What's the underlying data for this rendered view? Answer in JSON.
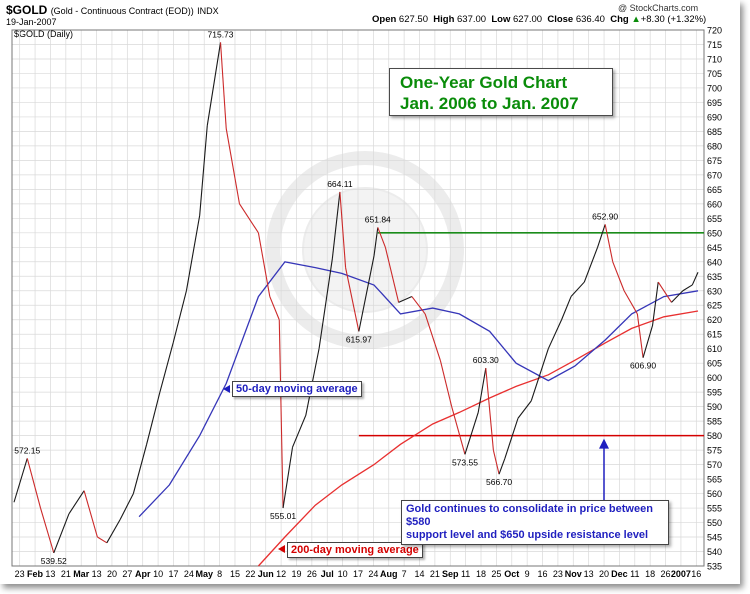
{
  "header": {
    "symbol": "$GOLD",
    "description": "(Gold - Continuous Contract (EOD))",
    "exchange": "INDX",
    "date": "19-Jan-2007",
    "credit": "@ StockCharts.com",
    "series_label": "$GOLD (Daily)",
    "quote": {
      "open_label": "Open",
      "open": "627.50",
      "high_label": "High",
      "high": "637.00",
      "low_label": "Low",
      "low": "627.00",
      "close_label": "Close",
      "close": "636.40",
      "chg_label": "Chg",
      "chg": "+8.30 (+1.32%)",
      "direction_glyph": "▲"
    }
  },
  "annotations": {
    "title_line1": "One-Year Gold Chart",
    "title_line2": "Jan. 2006 to Jan. 2007",
    "ma50_label": "50-day moving average",
    "ma200_label": "200-day moving average",
    "note_line1": "Gold continues to consolidate in price between $580",
    "note_line2": "support level and $650 upside resistance level"
  },
  "chart_data": {
    "type": "line",
    "ylim": [
      535,
      720
    ],
    "y_ticks": [
      535,
      540,
      545,
      550,
      555,
      560,
      565,
      570,
      575,
      580,
      585,
      590,
      595,
      600,
      605,
      610,
      615,
      620,
      625,
      630,
      635,
      640,
      645,
      650,
      655,
      660,
      665,
      670,
      675,
      680,
      685,
      690,
      695,
      700,
      705,
      710,
      715,
      720
    ],
    "x_tick_labels": [
      "23",
      "Feb",
      "13",
      "21",
      "Mar",
      "13",
      "20",
      "27",
      "Apr",
      "10",
      "17",
      "24",
      "May",
      "8",
      "15",
      "22",
      "Jun",
      "12",
      "19",
      "26",
      "Jul",
      "10",
      "17",
      "24",
      "Aug",
      "7",
      "14",
      "21",
      "Sep",
      "11",
      "18",
      "25",
      "Oct",
      "9",
      "16",
      "23",
      "Nov",
      "13",
      "20",
      "Dec",
      "11",
      "18",
      "26",
      "2007",
      "16"
    ],
    "bold_x_labels": [
      "Feb",
      "Mar",
      "Apr",
      "May",
      "Jun",
      "Jul",
      "Aug",
      "Sep",
      "Oct",
      "Nov",
      "Dec",
      "2007"
    ],
    "price_points": [
      [
        "23 Jan",
        557
      ],
      [
        "30 Jan",
        572.15
      ],
      [
        "6 Feb",
        555
      ],
      [
        "13 Feb",
        539.52
      ],
      [
        "21 Feb",
        553
      ],
      [
        "1 Mar",
        561
      ],
      [
        "8 Mar",
        545
      ],
      [
        "13 Mar",
        543
      ],
      [
        "20 Mar",
        551
      ],
      [
        "27 Mar",
        560
      ],
      [
        "3 Apr",
        577
      ],
      [
        "10 Apr",
        595
      ],
      [
        "17 Apr",
        612
      ],
      [
        "24 Apr",
        630
      ],
      [
        "1 May",
        656
      ],
      [
        "5 May",
        687
      ],
      [
        "12 May",
        715.73
      ],
      [
        "15 May",
        686
      ],
      [
        "22 May",
        660
      ],
      [
        "1 Jun",
        650
      ],
      [
        "7 Jun",
        628
      ],
      [
        "12 Jun",
        620
      ],
      [
        "14 Jun",
        555.01
      ],
      [
        "19 Jun",
        576
      ],
      [
        "26 Jun",
        587
      ],
      [
        "3 Jul",
        610
      ],
      [
        "10 Jul",
        641
      ],
      [
        "14 Jul",
        664.11
      ],
      [
        "17 Jul",
        638
      ],
      [
        "24 Jul",
        615.97
      ],
      [
        "1 Aug",
        642
      ],
      [
        "3 Aug",
        651.84
      ],
      [
        "7 Aug",
        645
      ],
      [
        "14 Aug",
        626
      ],
      [
        "21 Aug",
        628
      ],
      [
        "28 Aug",
        622
      ],
      [
        "5 Sep",
        606
      ],
      [
        "11 Sep",
        590
      ],
      [
        "18 Sep",
        573.55
      ],
      [
        "25 Sep",
        588
      ],
      [
        "29 Sep",
        603.3
      ],
      [
        "3 Oct",
        575
      ],
      [
        "6 Oct",
        566.7
      ],
      [
        "9 Oct",
        572
      ],
      [
        "16 Oct",
        586
      ],
      [
        "23 Oct",
        592
      ],
      [
        "1 Nov",
        610
      ],
      [
        "8 Nov",
        620
      ],
      [
        "13 Nov",
        628
      ],
      [
        "20 Nov",
        633
      ],
      [
        "27 Nov",
        645
      ],
      [
        "1 Dec",
        652.9
      ],
      [
        "5 Dec",
        640
      ],
      [
        "11 Dec",
        630
      ],
      [
        "18 Dec",
        622
      ],
      [
        "21 Dec",
        606.9
      ],
      [
        "26 Dec",
        618
      ],
      [
        "29 Dec",
        633
      ],
      [
        "5 Jan",
        626
      ],
      [
        "11 Jan",
        630
      ],
      [
        "16 Jan",
        632
      ],
      [
        "19 Jan",
        636.4
      ]
    ],
    "data_labels": [
      {
        "text": "572.15",
        "value": 572.15,
        "date": "30 Jan"
      },
      {
        "text": "539.52",
        "value": 539.52,
        "date": "13 Feb"
      },
      {
        "text": "715.73",
        "value": 715.73,
        "date": "12 May"
      },
      {
        "text": "555.01",
        "value": 555.01,
        "date": "14 Jun"
      },
      {
        "text": "664.11",
        "value": 664.11,
        "date": "14 Jul"
      },
      {
        "text": "615.97",
        "value": 615.97,
        "date": "24 Jul"
      },
      {
        "text": "651.84",
        "value": 651.84,
        "date": "3 Aug"
      },
      {
        "text": "603.30",
        "value": 603.3,
        "date": "29 Sep"
      },
      {
        "text": "573.55",
        "value": 573.55,
        "date": "18 Sep"
      },
      {
        "text": "566.70",
        "value": 566.7,
        "date": "6 Oct"
      },
      {
        "text": "652.90",
        "value": 652.9,
        "date": "1 Dec"
      },
      {
        "text": "606.90",
        "value": 606.9,
        "date": "21 Dec"
      }
    ],
    "ma50": [
      [
        "30 Mar",
        552
      ],
      [
        "15 Apr",
        563
      ],
      [
        "1 May",
        580
      ],
      [
        "15 May",
        598
      ],
      [
        "1 Jun",
        628
      ],
      [
        "15 Jun",
        640
      ],
      [
        "1 Jul",
        638
      ],
      [
        "15 Jul",
        636
      ],
      [
        "1 Aug",
        632
      ],
      [
        "15 Aug",
        622
      ],
      [
        "1 Sep",
        624
      ],
      [
        "15 Sep",
        622
      ],
      [
        "1 Oct",
        616
      ],
      [
        "15 Oct",
        605
      ],
      [
        "1 Nov",
        599
      ],
      [
        "15 Nov",
        604
      ],
      [
        "1 Dec",
        613
      ],
      [
        "15 Dec",
        622
      ],
      [
        "1 Jan",
        628
      ],
      [
        "19 Jan",
        630
      ]
    ],
    "ma200": [
      [
        "1 Jun",
        535
      ],
      [
        "15 Jun",
        545
      ],
      [
        "1 Jul",
        556
      ],
      [
        "15 Jul",
        563
      ],
      [
        "1 Aug",
        570
      ],
      [
        "15 Aug",
        577
      ],
      [
        "1 Sep",
        584
      ],
      [
        "15 Sep",
        588
      ],
      [
        "1 Oct",
        593
      ],
      [
        "15 Oct",
        597
      ],
      [
        "1 Nov",
        601
      ],
      [
        "15 Nov",
        606
      ],
      [
        "1 Dec",
        612
      ],
      [
        "15 Dec",
        617
      ],
      [
        "1 Jan",
        621
      ],
      [
        "19 Jan",
        623
      ]
    ],
    "reference_lines": [
      {
        "name": "resistance",
        "value": 650,
        "color": "#1a8c1a"
      },
      {
        "name": "support",
        "value": 580,
        "color": "#d40000"
      }
    ],
    "colors": {
      "price_up": "#1a1a1a",
      "price_down": "#cc2a2a",
      "ma50": "#3636b8",
      "ma200": "#e83030",
      "grid": "#d9d9d9"
    },
    "grid": true
  }
}
